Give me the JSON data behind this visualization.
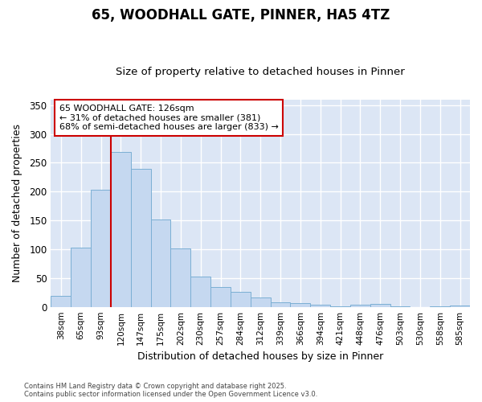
{
  "title_line1": "65, WOODHALL GATE, PINNER, HA5 4TZ",
  "title_line2": "Size of property relative to detached houses in Pinner",
  "xlabel": "Distribution of detached houses by size in Pinner",
  "ylabel": "Number of detached properties",
  "bar_labels": [
    "38sqm",
    "65sqm",
    "93sqm",
    "120sqm",
    "147sqm",
    "175sqm",
    "202sqm",
    "230sqm",
    "257sqm",
    "284sqm",
    "312sqm",
    "339sqm",
    "366sqm",
    "394sqm",
    "421sqm",
    "448sqm",
    "476sqm",
    "503sqm",
    "530sqm",
    "558sqm",
    "585sqm"
  ],
  "bar_values": [
    19,
    103,
    203,
    269,
    240,
    151,
    101,
    53,
    35,
    26,
    16,
    8,
    6,
    4,
    1,
    4,
    5,
    1,
    0,
    1,
    2
  ],
  "bar_color": "#c5d8f0",
  "bar_edge_color": "#7bafd4",
  "vline_color": "#cc0000",
  "vline_x_index": 3,
  "annotation_text": "65 WOODHALL GATE: 126sqm\n← 31% of detached houses are smaller (381)\n68% of semi-detached houses are larger (833) →",
  "annotation_box_color": "#ffffff",
  "annotation_box_edge": "#cc0000",
  "ylim": [
    0,
    360
  ],
  "yticks": [
    0,
    50,
    100,
    150,
    200,
    250,
    300,
    350
  ],
  "plot_bg_color": "#dce6f5",
  "fig_bg_color": "#ffffff",
  "grid_color": "#ffffff",
  "title1_fontsize": 12,
  "title2_fontsize": 10,
  "footnote": "Contains HM Land Registry data © Crown copyright and database right 2025.\nContains public sector information licensed under the Open Government Licence v3.0."
}
